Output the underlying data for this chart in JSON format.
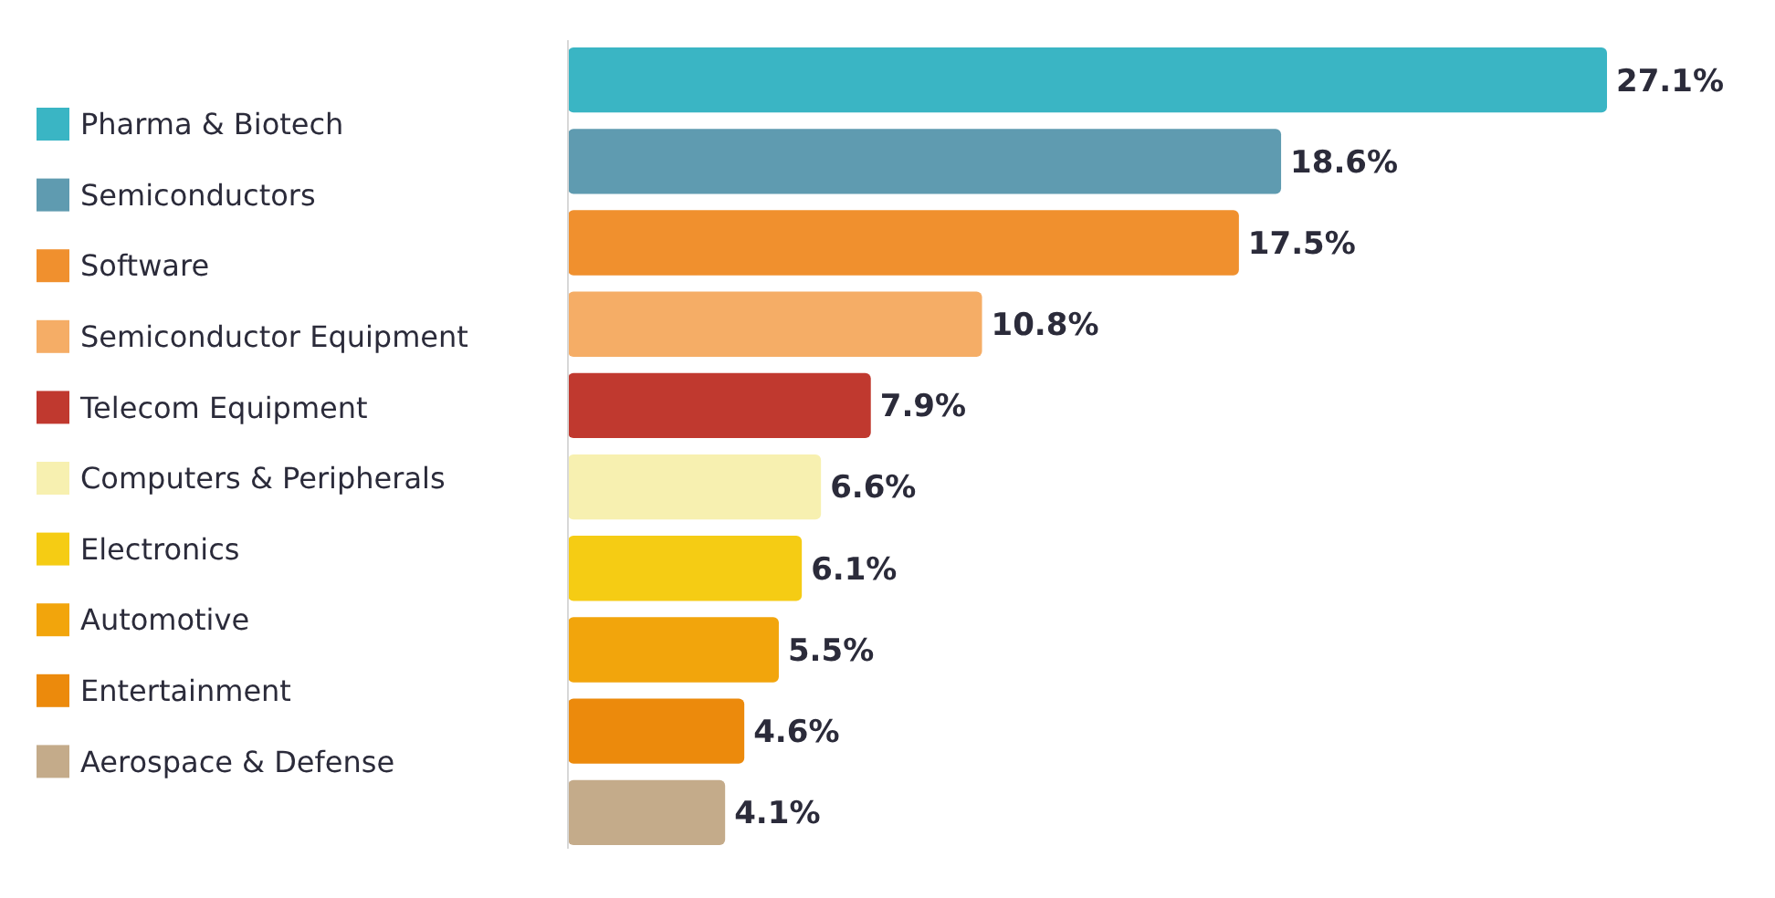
{
  "chart_data": {
    "type": "bar",
    "orientation": "horizontal",
    "stacked": true,
    "categories": [
      null,
      null,
      null,
      null,
      null,
      null,
      null,
      null,
      null,
      null
    ],
    "series": [
      {
        "name": "Pharma & Biotech",
        "color": "#3ab5c4",
        "values": [
          27.1,
          null,
          null,
          null,
          null,
          null,
          null,
          null,
          null,
          null
        ],
        "value_labels": [
          "27.1%",
          null,
          null,
          null,
          null,
          null,
          null,
          null,
          null,
          null
        ]
      },
      {
        "name": "Semiconductors",
        "color": "#5f9bb0",
        "values": [
          null,
          18.6,
          null,
          null,
          null,
          null,
          null,
          null,
          null,
          null
        ],
        "value_labels": [
          null,
          "18.6%",
          null,
          null,
          null,
          null,
          null,
          null,
          null,
          null
        ]
      },
      {
        "name": "Software",
        "color": "#f0902e",
        "values": [
          null,
          null,
          17.5,
          null,
          null,
          null,
          null,
          null,
          null,
          null
        ],
        "value_labels": [
          null,
          null,
          "17.5%",
          null,
          null,
          null,
          null,
          null,
          null,
          null
        ]
      },
      {
        "name": "Semiconductor Equipment",
        "color": "#f5ad66",
        "values": [
          null,
          null,
          null,
          10.8,
          null,
          null,
          null,
          null,
          null,
          null
        ],
        "value_labels": [
          null,
          null,
          null,
          "10.8%",
          null,
          null,
          null,
          null,
          null,
          null
        ]
      },
      {
        "name": "Telecom Equipment",
        "color": "#c0392f",
        "values": [
          null,
          null,
          null,
          null,
          7.9,
          null,
          null,
          null,
          null,
          null
        ],
        "value_labels": [
          null,
          null,
          null,
          null,
          "7.9%",
          null,
          null,
          null,
          null,
          null
        ]
      },
      {
        "name": "Computers & Peripherals",
        "color": "#f7f0b0",
        "values": [
          null,
          null,
          null,
          null,
          null,
          6.6,
          null,
          null,
          null,
          null
        ],
        "value_labels": [
          null,
          null,
          null,
          null,
          null,
          "6.6%",
          null,
          null,
          null,
          null
        ]
      },
      {
        "name": "Electronics",
        "color": "#f5cc14",
        "values": [
          null,
          null,
          null,
          null,
          null,
          null,
          6.1,
          null,
          null,
          null
        ],
        "value_labels": [
          null,
          null,
          null,
          null,
          null,
          null,
          "6.1%",
          null,
          null,
          null
        ]
      },
      {
        "name": "Automotive",
        "color": "#f2a50c",
        "values": [
          null,
          null,
          null,
          null,
          null,
          null,
          null,
          5.5,
          null,
          null
        ],
        "value_labels": [
          null,
          null,
          null,
          null,
          null,
          null,
          null,
          "5.5%",
          null,
          null
        ]
      },
      {
        "name": "Entertainment",
        "color": "#ec8a0c",
        "values": [
          null,
          null,
          null,
          null,
          null,
          null,
          null,
          null,
          4.6,
          null
        ],
        "value_labels": [
          null,
          null,
          null,
          null,
          null,
          null,
          null,
          null,
          "4.6%",
          null
        ]
      },
      {
        "name": "Aerospace & Defense",
        "color": "#c4ab8a",
        "values": [
          null,
          null,
          null,
          null,
          null,
          null,
          null,
          null,
          null,
          4.1
        ],
        "value_labels": [
          null,
          null,
          null,
          null,
          null,
          null,
          null,
          null,
          null,
          "4.1%"
        ]
      }
    ],
    "legend": "left"
  }
}
